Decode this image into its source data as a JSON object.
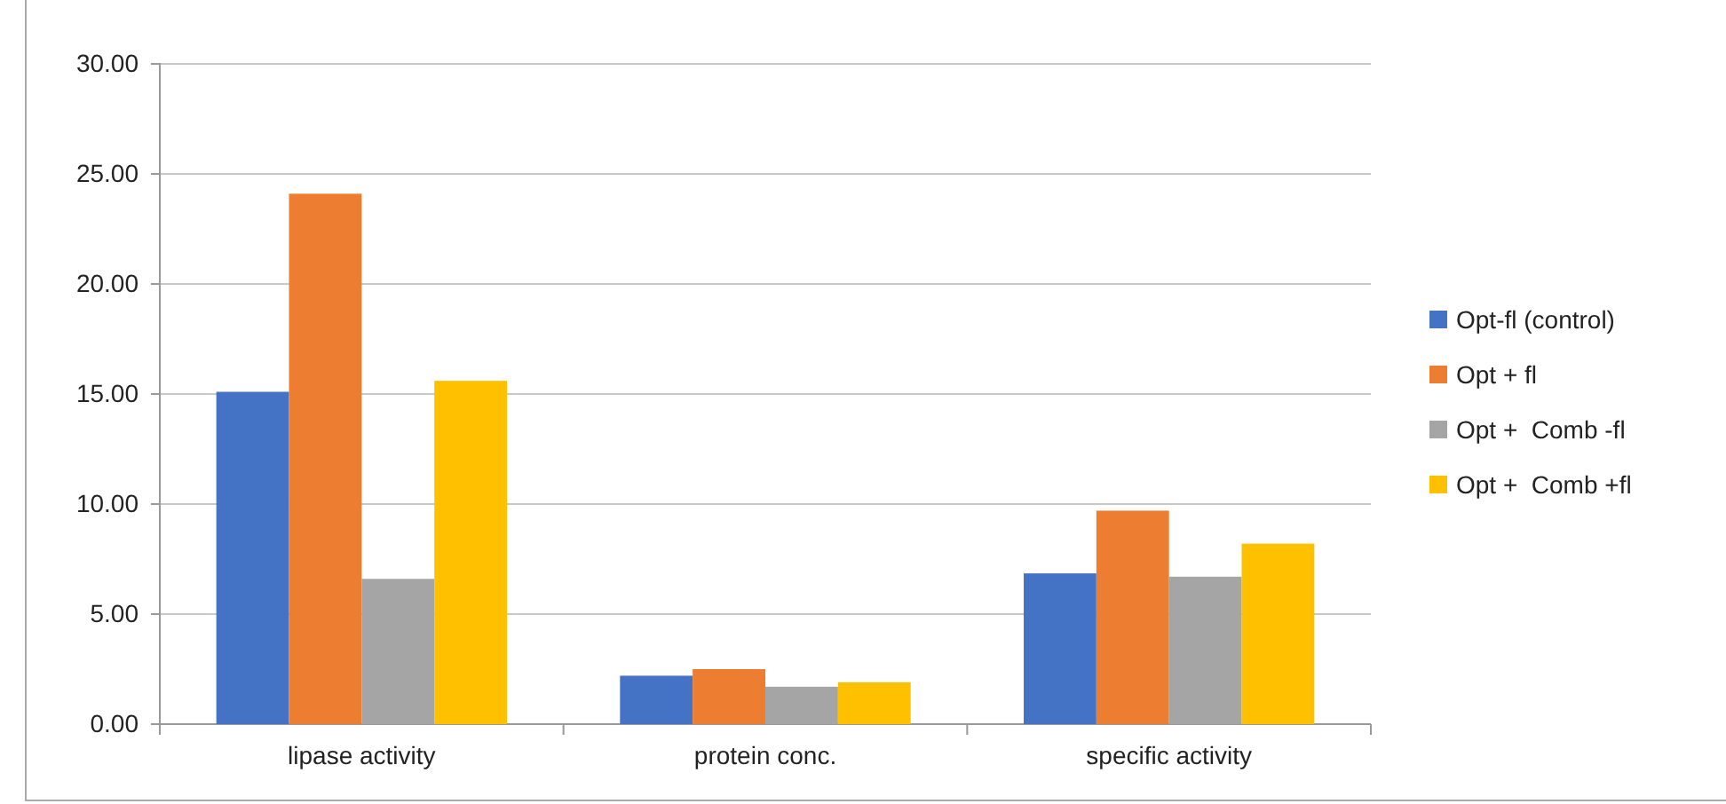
{
  "chart_data": {
    "type": "bar",
    "categories": [
      "lipase activity",
      "protein conc.",
      "specific activity"
    ],
    "series": [
      {
        "name": "Opt-fl (control)",
        "color": "#4472c4",
        "values": [
          15.1,
          2.2,
          6.85
        ]
      },
      {
        "name": "Opt + fl",
        "color": "#ed7d31",
        "values": [
          24.1,
          2.5,
          9.7
        ]
      },
      {
        "name": "Opt +  Comb -fl",
        "color": "#a5a5a5",
        "values": [
          6.6,
          1.7,
          6.7
        ]
      },
      {
        "name": "Opt +  Comb +fl",
        "color": "#ffc000",
        "values": [
          15.6,
          1.9,
          8.2
        ]
      }
    ],
    "ylim": [
      0,
      30
    ],
    "yticks": [
      {
        "value": 0,
        "label": "0.00"
      },
      {
        "value": 5,
        "label": "5.00"
      },
      {
        "value": 10,
        "label": "10.00"
      },
      {
        "value": 15,
        "label": "15.00"
      },
      {
        "value": 20,
        "label": "20.00"
      },
      {
        "value": 25,
        "label": "25.00"
      },
      {
        "value": 30,
        "label": "30.00"
      }
    ],
    "grid": "y",
    "legend": "right"
  }
}
